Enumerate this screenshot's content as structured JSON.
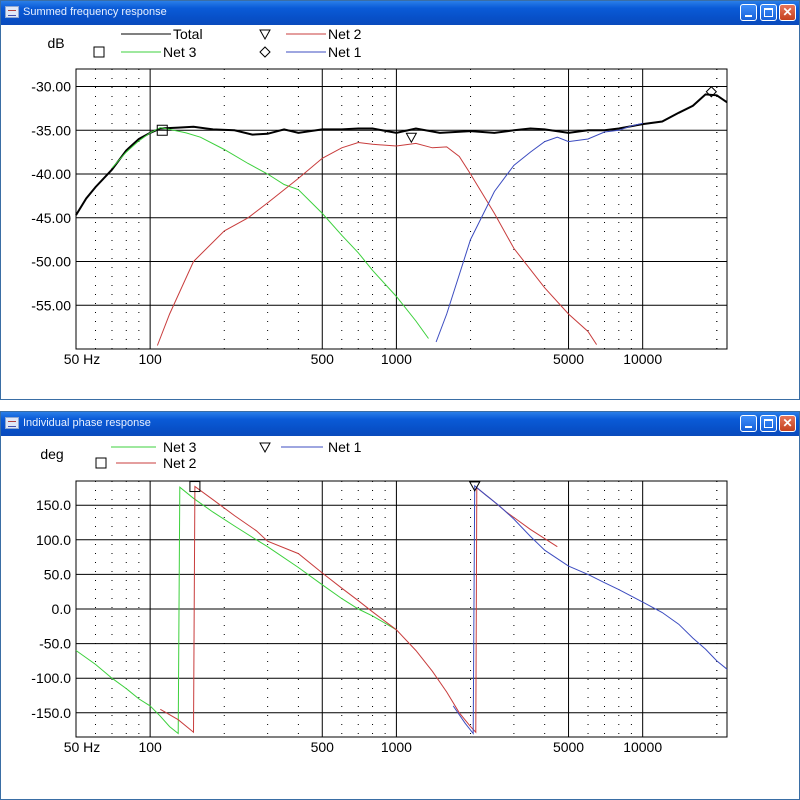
{
  "windows": [
    {
      "title": "Summed frequency response"
    },
    {
      "title": "Individual phase response"
    }
  ],
  "chart_data": [
    {
      "type": "line",
      "ylabel": "dB",
      "xscale": "log",
      "xlim": [
        50,
        22000
      ],
      "ylim": [
        -60,
        -28
      ],
      "xticks": [
        50,
        100,
        500,
        1000,
        5000,
        10000
      ],
      "xtick_labels": [
        "50 Hz",
        "100",
        "500",
        "1000",
        "5000",
        "10000"
      ],
      "yticks": [
        -30,
        -35,
        -40,
        -45,
        -50,
        -55
      ],
      "ytick_labels": [
        "-30.00",
        "-35.00",
        "-40.00",
        "-45.00",
        "-50.00",
        "-55.00"
      ],
      "grid": true,
      "legend": [
        {
          "name": "Total",
          "marker": "none",
          "color": "#000000"
        },
        {
          "name": "Net 2",
          "marker": "triangle-down",
          "color": "#c83c3c"
        },
        {
          "name": "Net 3",
          "marker": "square",
          "color": "#3cd03c"
        },
        {
          "name": "Net 1",
          "marker": "diamond",
          "color": "#3c4cc0"
        }
      ],
      "series": [
        {
          "name": "Total",
          "color": "#000000",
          "width": 2,
          "points": [
            [
              50,
              -44.7
            ],
            [
              55,
              -42.8
            ],
            [
              60,
              -41.5
            ],
            [
              70,
              -39.5
            ],
            [
              80,
              -37.3
            ],
            [
              90,
              -36.0
            ],
            [
              100,
              -35.3
            ],
            [
              110,
              -34.8
            ],
            [
              130,
              -34.7
            ],
            [
              150,
              -34.6
            ],
            [
              180,
              -34.9
            ],
            [
              220,
              -35.0
            ],
            [
              260,
              -35.5
            ],
            [
              300,
              -35.4
            ],
            [
              350,
              -34.9
            ],
            [
              400,
              -35.3
            ],
            [
              500,
              -34.9
            ],
            [
              600,
              -34.9
            ],
            [
              700,
              -34.8
            ],
            [
              800,
              -34.8
            ],
            [
              1000,
              -35.3
            ],
            [
              1200,
              -34.8
            ],
            [
              1500,
              -35.3
            ],
            [
              2000,
              -35.1
            ],
            [
              2500,
              -35.3
            ],
            [
              3000,
              -35.0
            ],
            [
              3500,
              -34.8
            ],
            [
              4000,
              -34.9
            ],
            [
              5000,
              -35.3
            ],
            [
              6000,
              -35.0
            ],
            [
              7000,
              -35.0
            ],
            [
              8000,
              -34.8
            ],
            [
              10000,
              -34.3
            ],
            [
              12000,
              -34.0
            ],
            [
              14000,
              -33.0
            ],
            [
              16000,
              -32.2
            ],
            [
              18000,
              -30.9
            ],
            [
              20000,
              -31.0
            ],
            [
              22000,
              -31.8
            ]
          ]
        },
        {
          "name": "Net 3",
          "color": "#3cd03c",
          "width": 1,
          "points": [
            [
              70,
              -39.3
            ],
            [
              80,
              -37.5
            ],
            [
              90,
              -36.2
            ],
            [
              100,
              -35.3
            ],
            [
              110,
              -34.7
            ],
            [
              120,
              -34.9
            ],
            [
              140,
              -35.3
            ],
            [
              160,
              -35.8
            ],
            [
              200,
              -37.2
            ],
            [
              250,
              -38.8
            ],
            [
              300,
              -40.0
            ],
            [
              350,
              -41.2
            ],
            [
              400,
              -41.8
            ],
            [
              500,
              -44.5
            ],
            [
              600,
              -47.0
            ],
            [
              700,
              -49.0
            ],
            [
              800,
              -51.0
            ],
            [
              1000,
              -54.0
            ],
            [
              1200,
              -56.8
            ],
            [
              1350,
              -58.8
            ]
          ]
        },
        {
          "name": "Net 2",
          "color": "#c83c3c",
          "width": 1,
          "points": [
            [
              107,
              -59.6
            ],
            [
              120,
              -56.0
            ],
            [
              150,
              -50.0
            ],
            [
              200,
              -46.5
            ],
            [
              250,
              -45.0
            ],
            [
              300,
              -43.3
            ],
            [
              400,
              -40.5
            ],
            [
              500,
              -38.2
            ],
            [
              600,
              -37.0
            ],
            [
              700,
              -36.4
            ],
            [
              800,
              -36.6
            ],
            [
              1000,
              -36.8
            ],
            [
              1200,
              -36.5
            ],
            [
              1400,
              -37.0
            ],
            [
              1600,
              -36.9
            ],
            [
              1800,
              -38.0
            ],
            [
              2000,
              -40.0
            ],
            [
              2500,
              -44.5
            ],
            [
              3000,
              -48.5
            ],
            [
              4000,
              -53.0
            ],
            [
              5000,
              -56.0
            ],
            [
              6000,
              -58.0
            ],
            [
              6500,
              -59.5
            ]
          ]
        },
        {
          "name": "Net 1",
          "color": "#3c4cc0",
          "width": 1,
          "points": [
            [
              1450,
              -59.2
            ],
            [
              1600,
              -56.0
            ],
            [
              1800,
              -51.5
            ],
            [
              2000,
              -47.5
            ],
            [
              2500,
              -42.0
            ],
            [
              3000,
              -39.0
            ],
            [
              3500,
              -37.5
            ],
            [
              4000,
              -36.3
            ],
            [
              4500,
              -35.8
            ],
            [
              5000,
              -36.3
            ],
            [
              6000,
              -36.0
            ],
            [
              7000,
              -35.2
            ],
            [
              8000,
              -35.0
            ],
            [
              9000,
              -34.5
            ],
            [
              10000,
              -34.2
            ]
          ]
        }
      ],
      "markers": [
        {
          "series": "Net 3",
          "shape": "square",
          "x": 112,
          "y": -35.0
        },
        {
          "series": "Net 2",
          "shape": "triangle-down",
          "x": 1150,
          "y": -35.8
        },
        {
          "series": "Net 1",
          "shape": "diamond",
          "x": 19000,
          "y": -30.6
        }
      ]
    },
    {
      "type": "line",
      "ylabel": "deg",
      "xscale": "log",
      "xlim": [
        50,
        22000
      ],
      "ylim": [
        -185,
        185
      ],
      "xticks": [
        50,
        100,
        500,
        1000,
        5000,
        10000
      ],
      "xtick_labels": [
        "50 Hz",
        "100",
        "500",
        "1000",
        "5000",
        "10000"
      ],
      "yticks": [
        150,
        100,
        50,
        0,
        -50,
        -100,
        -150
      ],
      "ytick_labels": [
        "150.0",
        "100.0",
        "50.0",
        "0.0",
        "-50.0",
        "-100.0",
        "-150.0"
      ],
      "grid": true,
      "legend": [
        {
          "name": "Net 3",
          "marker": "none",
          "color": "#3cd03c"
        },
        {
          "name": "Net 1",
          "marker": "triangle-down",
          "color": "#3c4cc0"
        },
        {
          "name": "Net 2",
          "marker": "square",
          "color": "#c83c3c"
        }
      ],
      "series": [
        {
          "name": "Net 3",
          "color": "#3cd03c",
          "width": 1,
          "points": [
            [
              50,
              -60
            ],
            [
              60,
              -80
            ],
            [
              70,
              -100
            ],
            [
              80,
              -115
            ],
            [
              90,
              -130
            ],
            [
              100,
              -140
            ],
            [
              110,
              -155
            ],
            [
              120,
              -170
            ],
            [
              130,
              -180
            ],
            [
              132,
              176
            ],
            [
              150,
              160
            ],
            [
              180,
              140
            ],
            [
              220,
              120
            ],
            [
              270,
              100
            ],
            [
              300,
              90
            ],
            [
              400,
              60
            ],
            [
              500,
              35
            ],
            [
              600,
              15
            ],
            [
              700,
              0
            ],
            [
              800,
              -10
            ],
            [
              1000,
              -30
            ]
          ]
        },
        {
          "name": "Net 2",
          "color": "#c83c3c",
          "width": 1,
          "points": [
            [
              110,
              -145
            ],
            [
              130,
              -160
            ],
            [
              150,
              -178
            ],
            [
              152,
              177
            ],
            [
              180,
              158
            ],
            [
              220,
              135
            ],
            [
              270,
              113
            ],
            [
              300,
              98
            ],
            [
              400,
              80
            ],
            [
              500,
              52
            ],
            [
              600,
              30
            ],
            [
              700,
              12
            ],
            [
              800,
              -4
            ],
            [
              1000,
              -30
            ],
            [
              1200,
              -60
            ],
            [
              1400,
              -90
            ],
            [
              1600,
              -120
            ],
            [
              1800,
              -150
            ],
            [
              2000,
              -170
            ],
            [
              2100,
              -178
            ],
            [
              2120,
              175
            ],
            [
              2400,
              160
            ],
            [
              2800,
              140
            ],
            [
              3500,
              115
            ],
            [
              4500,
              90
            ]
          ]
        },
        {
          "name": "Net 1",
          "color": "#3c4cc0",
          "width": 1,
          "points": [
            [
              1700,
              -140
            ],
            [
              1900,
              -165
            ],
            [
              2050,
              -180
            ],
            [
              2080,
              178
            ],
            [
              2300,
              165
            ],
            [
              2600,
              150
            ],
            [
              3000,
              130
            ],
            [
              3500,
              105
            ],
            [
              4000,
              85
            ],
            [
              5000,
              62
            ],
            [
              6000,
              50
            ],
            [
              7000,
              38
            ],
            [
              8000,
              28
            ],
            [
              10000,
              10
            ],
            [
              12000,
              -5
            ],
            [
              14000,
              -22
            ],
            [
              16000,
              -42
            ],
            [
              18000,
              -58
            ],
            [
              20000,
              -75
            ],
            [
              22000,
              -87
            ]
          ]
        }
      ],
      "markers": [
        {
          "series": "Net 2",
          "shape": "square",
          "x": 152,
          "y": 177
        },
        {
          "series": "Net 1",
          "shape": "triangle-down",
          "x": 2080,
          "y": 178
        }
      ]
    }
  ]
}
